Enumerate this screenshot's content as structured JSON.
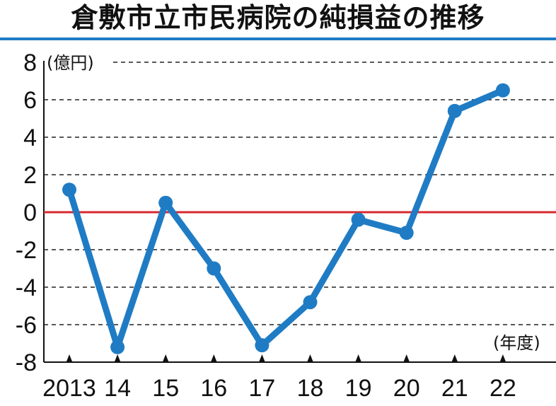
{
  "chart_data": {
    "type": "line",
    "title": "倉敷市立市民病院の純損益の推移",
    "ylabel": "(億円)",
    "xlabel": "(年度)",
    "categories": [
      "2013",
      "14",
      "15",
      "16",
      "17",
      "18",
      "19",
      "20",
      "21",
      "22"
    ],
    "series": [
      {
        "values": [
          1.2,
          -7.2,
          0.5,
          -3.0,
          -7.1,
          -4.8,
          -0.4,
          -1.1,
          5.4,
          6.5
        ]
      }
    ],
    "ylim": [
      -8,
      8
    ],
    "yticks": [
      "8",
      "6",
      "4",
      "2",
      "0",
      "-2",
      "-4",
      "-6",
      "-8"
    ],
    "grid": "dashed horizontal",
    "colors": {
      "line": "#1f7cc4",
      "zero_line": "#d7282f",
      "title_rule": "#1f7cc4"
    }
  }
}
